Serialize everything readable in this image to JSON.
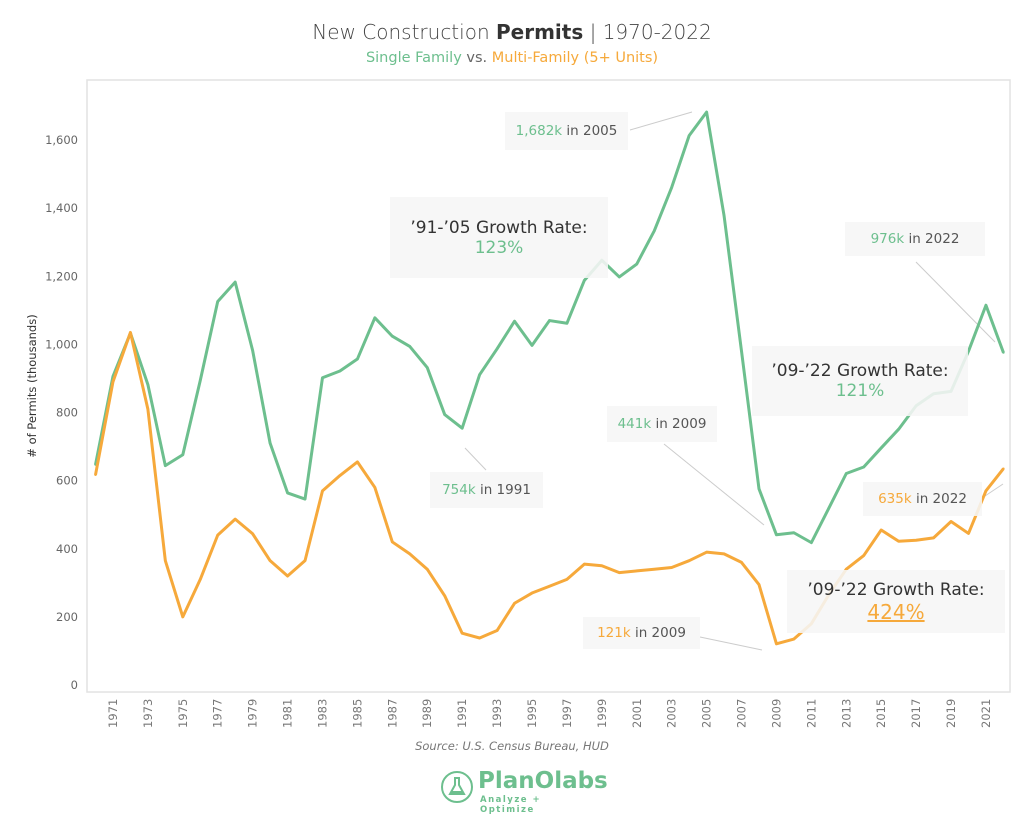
{
  "chart_data": {
    "type": "line",
    "title": {
      "part1": "New Construction ",
      "bold": "Permits",
      "part2": " | 1970-2022"
    },
    "subtitle": {
      "series1": "Single Family",
      "vs": " vs. ",
      "series2": "Multi-Family (5+ Units)"
    },
    "ylabel": "# of Permits (thousands)",
    "xlabel": "",
    "ylim": [
      0,
      1700
    ],
    "yticks": [
      "0",
      "200",
      "400",
      "600",
      "800",
      "1,000",
      "1,200",
      "1,400",
      "1,600"
    ],
    "ytick_values": [
      0,
      200,
      400,
      600,
      800,
      1000,
      1200,
      1400,
      1600
    ],
    "xticks": [
      "1971",
      "1973",
      "1975",
      "1977",
      "1979",
      "1981",
      "1983",
      "1985",
      "1987",
      "1989",
      "1991",
      "1993",
      "1995",
      "1997",
      "1999",
      "2001",
      "2003",
      "2005",
      "2007",
      "2009",
      "2011",
      "2013",
      "2015",
      "2017",
      "2019",
      "2021"
    ],
    "x": [
      1970,
      1971,
      1972,
      1973,
      1974,
      1975,
      1976,
      1977,
      1978,
      1979,
      1980,
      1981,
      1982,
      1983,
      1984,
      1985,
      1986,
      1987,
      1988,
      1989,
      1990,
      1991,
      1992,
      1993,
      1994,
      1995,
      1996,
      1997,
      1998,
      1999,
      2000,
      2001,
      2002,
      2003,
      2004,
      2005,
      2006,
      2007,
      2008,
      2009,
      2010,
      2011,
      2012,
      2013,
      2014,
      2015,
      2016,
      2017,
      2018,
      2019,
      2020,
      2021,
      2022
    ],
    "series": [
      {
        "name": "Single Family",
        "color": "#6dbf8e",
        "values": [
          647,
          906,
          1033,
          882,
          644,
          676,
          894,
          1126,
          1183,
          982,
          710,
          564,
          546,
          902,
          922,
          957,
          1078,
          1024,
          994,
          932,
          794,
          754,
          911,
          987,
          1068,
          997,
          1070,
          1062,
          1188,
          1247,
          1198,
          1236,
          1333,
          1461,
          1613,
          1682,
          1378,
          980,
          576,
          441,
          447,
          418,
          519,
          621,
          640,
          696,
          751,
          820,
          855,
          862,
          980,
          1115,
          976
        ]
      },
      {
        "name": "Multi-Family (5+ Units)",
        "color": "#f6a93b",
        "values": [
          617,
          890,
          1035,
          810,
          365,
          200,
          310,
          440,
          487,
          444,
          365,
          320,
          365,
          570,
          615,
          655,
          580,
          420,
          385,
          340,
          262,
          152,
          138,
          160,
          240,
          270,
          290,
          310,
          355,
          350,
          330,
          335,
          340,
          345,
          365,
          390,
          385,
          360,
          295,
          121,
          135,
          180,
          265,
          340,
          380,
          455,
          422,
          425,
          432,
          480,
          445,
          570,
          635
        ]
      }
    ],
    "grid": false,
    "legend": "subtitle",
    "annotations": {
      "peak2005": {
        "value": "1,682k",
        "text": " in 2005"
      },
      "growth9105": {
        "label": "’91-’05 Growth Rate:",
        "value": "123%"
      },
      "low1991": {
        "value": "754k",
        "text": " in 1991"
      },
      "sf2009": {
        "value": "441k",
        "text": " in 2009"
      },
      "sf2022": {
        "value": "976k",
        "text": " in 2022"
      },
      "growthSF0922": {
        "label": "’09-’22 Growth Rate:",
        "value": "121%"
      },
      "mf2022": {
        "value": "635k",
        "text": " in 2022"
      },
      "growthMF0922": {
        "label": "’09-’22 Growth Rate:",
        "value": "424%"
      },
      "mf2009": {
        "value": "121k",
        "text": " in 2009"
      }
    }
  },
  "source": "Source: U.S. Census Bureau, HUD",
  "logo": {
    "name": "PlanOlabs",
    "tagline": "Analyze + Optimize"
  }
}
